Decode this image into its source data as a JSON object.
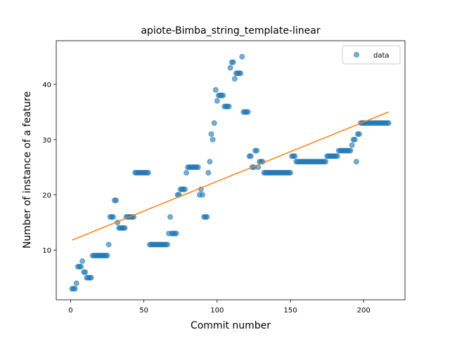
{
  "chart_data": {
    "type": "scatter",
    "title": "apiote-Bimba_string_template-linear",
    "x_label": "Commit number",
    "y_label": "Number of instance of a feature",
    "xlim": [
      -9.8,
      228.2
    ],
    "ylim": [
      1.0,
      47.9
    ],
    "xticks": [
      0,
      50,
      100,
      150,
      200
    ],
    "yticks": [
      10,
      20,
      30,
      40
    ],
    "legend": "upper right",
    "series": [
      {
        "name": "data",
        "color": "#1f77b4",
        "kind": "scatter",
        "x": [
          1,
          2,
          3,
          4,
          5,
          6,
          7,
          8,
          9,
          10,
          11,
          12,
          13,
          14,
          15,
          16,
          17,
          18,
          19,
          20,
          21,
          22,
          23,
          24,
          25,
          26,
          27,
          28,
          29,
          30,
          31,
          32,
          33,
          34,
          35,
          36,
          37,
          38,
          39,
          40,
          41,
          42,
          43,
          44,
          45,
          46,
          47,
          48,
          49,
          50,
          51,
          52,
          53,
          54,
          55,
          56,
          57,
          58,
          59,
          60,
          61,
          62,
          63,
          64,
          65,
          66,
          67,
          68,
          69,
          70,
          71,
          72,
          73,
          74,
          75,
          76,
          77,
          78,
          79,
          80,
          81,
          82,
          83,
          84,
          85,
          86,
          87,
          88,
          89,
          90,
          91,
          92,
          93,
          94,
          95,
          96,
          97,
          98,
          99,
          100,
          101,
          102,
          103,
          104,
          105,
          106,
          107,
          108,
          109,
          110,
          111,
          112,
          113,
          114,
          115,
          116,
          117,
          118,
          119,
          120,
          121,
          122,
          123,
          124,
          125,
          126,
          127,
          128,
          129,
          130,
          131,
          132,
          133,
          134,
          135,
          136,
          137,
          138,
          139,
          140,
          141,
          142,
          143,
          144,
          145,
          146,
          147,
          148,
          149,
          150,
          151,
          152,
          153,
          154,
          155,
          156,
          157,
          158,
          159,
          160,
          161,
          162,
          163,
          164,
          165,
          166,
          167,
          168,
          169,
          170,
          171,
          172,
          173,
          174,
          175,
          176,
          177,
          178,
          179,
          180,
          181,
          182,
          183,
          184,
          185,
          186,
          187,
          188,
          189,
          190,
          191,
          192,
          193,
          194,
          195,
          196,
          197,
          198,
          199,
          200,
          201,
          202,
          203,
          204,
          205,
          206,
          207,
          208,
          209,
          210,
          211,
          212,
          213,
          214,
          215,
          216,
          217
        ],
        "values": [
          3,
          3,
          3,
          4,
          7,
          7,
          7,
          8,
          6,
          6,
          5,
          5,
          5,
          5,
          9,
          9,
          9,
          9,
          9,
          9,
          9,
          9,
          9,
          9,
          9,
          11,
          16,
          16,
          16,
          19,
          19,
          15,
          14,
          14,
          14,
          14,
          14,
          16,
          16,
          16,
          16,
          16,
          16,
          24,
          24,
          24,
          24,
          24,
          24,
          24,
          24,
          24,
          24,
          11,
          11,
          11,
          11,
          11,
          11,
          11,
          11,
          11,
          11,
          11,
          11,
          11,
          13,
          16,
          13,
          13,
          13,
          13,
          20,
          20,
          21,
          21,
          21,
          21,
          24,
          25,
          25,
          25,
          25,
          25,
          25,
          25,
          25,
          20,
          21,
          20,
          16,
          16,
          16,
          24,
          26,
          31,
          30,
          33,
          39,
          37,
          38,
          38,
          38,
          38,
          36,
          36,
          36,
          36,
          43,
          44,
          44,
          41,
          42,
          42,
          42,
          42,
          45,
          35,
          35,
          35,
          35,
          27,
          27,
          25,
          25,
          28,
          28,
          25,
          26,
          26,
          26,
          24,
          24,
          24,
          24,
          24,
          24,
          24,
          24,
          24,
          24,
          24,
          24,
          24,
          24,
          24,
          24,
          24,
          24,
          24,
          27,
          27,
          27,
          26,
          26,
          26,
          26,
          26,
          26,
          26,
          26,
          26,
          26,
          26,
          26,
          26,
          26,
          26,
          26,
          26,
          26,
          26,
          26,
          26,
          27,
          27,
          27,
          27,
          27,
          27,
          27,
          27,
          28,
          28,
          28,
          28,
          28,
          28,
          28,
          28,
          28,
          29,
          30,
          30,
          26,
          31,
          31,
          33,
          33,
          33,
          33,
          33,
          33,
          33,
          33,
          33,
          33,
          33,
          33,
          33,
          33,
          33,
          33,
          33,
          33,
          33,
          33
        ]
      },
      {
        "color": "#ff7f0e",
        "kind": "line",
        "x": [
          1,
          217
        ],
        "values": [
          11.8,
          35.0
        ]
      }
    ]
  }
}
